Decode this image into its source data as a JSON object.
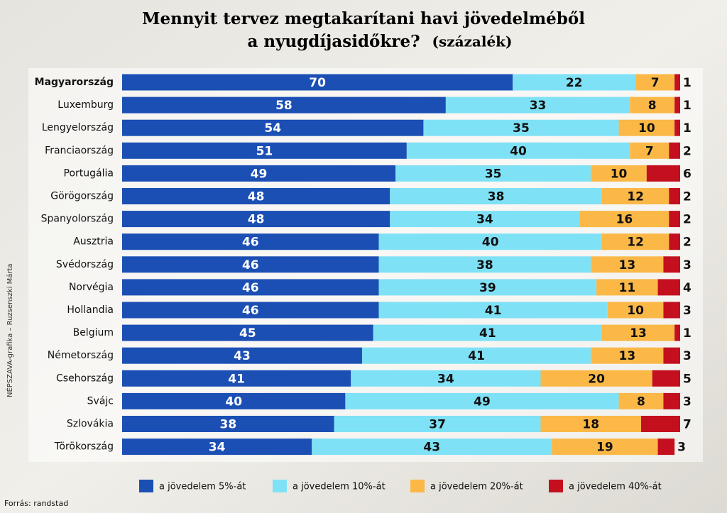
{
  "chart_data": {
    "type": "stacked-bar-horizontal",
    "title": "Mennyit tervez megtakarítani havi jövedelméből",
    "subtitle": "a nyugdíjasidőkre?",
    "unit": "(százalék)",
    "credit": "NÉPSZAVA-grafika – Ruzsenszki Márta",
    "source": "Forrás: randstad",
    "xlim": [
      0,
      100
    ],
    "categories": [
      "Magyarország",
      "Luxemburg",
      "Lengyelország",
      "Franciaország",
      "Portugália",
      "Görögország",
      "Spanyolország",
      "Ausztria",
      "Svédország",
      "Norvégia",
      "Hollandia",
      "Belgium",
      "Németország",
      "Csehország",
      "Svájc",
      "Szlovákia",
      "Törökország"
    ],
    "series": [
      {
        "name": "a jövedelem 5%-át",
        "color": "#1b4fb4",
        "values": [
          70,
          58,
          54,
          51,
          49,
          48,
          48,
          46,
          46,
          46,
          46,
          45,
          43,
          41,
          40,
          38,
          34
        ]
      },
      {
        "name": "a jövedelem 10%-át",
        "color": "#7fe1f6",
        "values": [
          22,
          33,
          35,
          40,
          35,
          38,
          34,
          40,
          38,
          39,
          41,
          41,
          41,
          34,
          49,
          37,
          43
        ]
      },
      {
        "name": "a jövedelem 20%-át",
        "color": "#fbb847",
        "values": [
          7,
          8,
          10,
          7,
          10,
          12,
          16,
          12,
          13,
          11,
          10,
          13,
          13,
          20,
          8,
          18,
          19
        ]
      },
      {
        "name": "a jövedelem 40%-át",
        "color": "#c40f1f",
        "values": [
          1,
          1,
          1,
          2,
          6,
          2,
          2,
          2,
          3,
          4,
          3,
          1,
          3,
          5,
          3,
          7,
          3
        ]
      }
    ]
  }
}
